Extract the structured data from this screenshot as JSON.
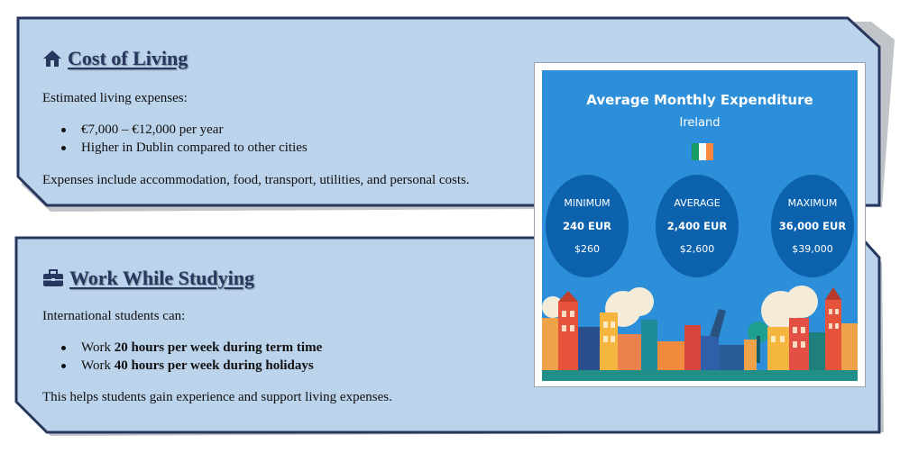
{
  "cost_of_living": {
    "title": "Cost of Living",
    "icon": "home-icon",
    "intro": "Estimated living expenses:",
    "bullets": [
      "€7,000 – €12,000 per year",
      "Higher in Dublin compared to other cities"
    ],
    "note": "Expenses include accommodation, food, transport, utilities, and personal costs."
  },
  "work_while_studying": {
    "title": "Work While Studying",
    "icon": "briefcase-icon",
    "intro": "International students can:",
    "bullets": [
      {
        "prefix": "Work ",
        "bold": "20 hours per week during term time"
      },
      {
        "prefix": "Work ",
        "bold": "40 hours per week during holidays"
      }
    ],
    "note": "This helps students gain experience and support living expenses."
  },
  "infographic": {
    "title": "Average Monthly Expenditure",
    "subtitle": "Ireland",
    "flag_colors": [
      "#169b62",
      "#ffffff",
      "#ff883e"
    ],
    "background_color": "#2d8fd9",
    "circle_color": "#0d62ad",
    "stats": [
      {
        "label": "MINIMUM",
        "eur": "240 EUR",
        "usd": "$260"
      },
      {
        "label": "AVERAGE",
        "eur": "2,400 EUR",
        "usd": "$2,600"
      },
      {
        "label": "MAXIMUM",
        "eur": "36,000 EUR",
        "usd": "$39,000"
      }
    ]
  },
  "colors": {
    "panel_fill": "#bcd3ec",
    "panel_border": "#27375e",
    "heading": "#27375e"
  }
}
